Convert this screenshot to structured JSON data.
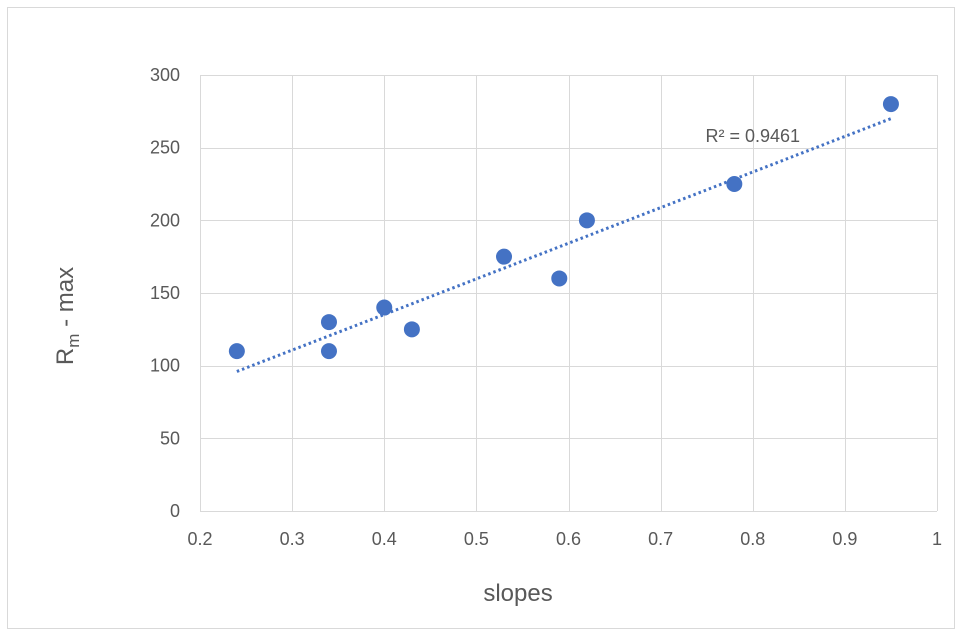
{
  "chart_data": {
    "type": "scatter",
    "xlabel": "slopes",
    "ylabel": {
      "main": "R",
      "subscript": "m",
      "suffix": " - max"
    },
    "xlim": [
      0.2,
      1
    ],
    "ylim": [
      0,
      300
    ],
    "x_ticks": [
      0.2,
      0.3,
      0.4,
      0.5,
      0.6,
      0.7,
      0.8,
      0.9,
      1
    ],
    "x_tick_labels": [
      "0.2",
      "0.3",
      "0.4",
      "0.5",
      "0.6",
      "0.7",
      "0.8",
      "0.9",
      "1"
    ],
    "y_ticks": [
      0,
      50,
      100,
      150,
      200,
      250,
      300
    ],
    "y_tick_labels": [
      "0",
      "50",
      "100",
      "150",
      "200",
      "250",
      "300"
    ],
    "grid": true,
    "legend": "none",
    "series": [
      {
        "x": [
          0.24,
          0.34,
          0.34,
          0.4,
          0.43,
          0.53,
          0.59,
          0.62,
          0.78,
          0.95
        ],
        "y": [
          110,
          130,
          110,
          140,
          125,
          175,
          160,
          200,
          225,
          280
        ],
        "color": "#4472C4",
        "marker": "circle"
      }
    ],
    "trendline": {
      "type": "linear",
      "style": "dotted",
      "color": "#4472C4",
      "x_range": [
        0.24,
        0.95
      ],
      "y_range": [
        96,
        270
      ]
    },
    "annotations": [
      {
        "text": "R² = 0.9461",
        "x": 0.8,
        "y": 258
      }
    ],
    "colors": {
      "marker": "#4472C4",
      "grid": "#D9D9D9",
      "frame": "#D9D9D9",
      "text": "#595959"
    }
  }
}
